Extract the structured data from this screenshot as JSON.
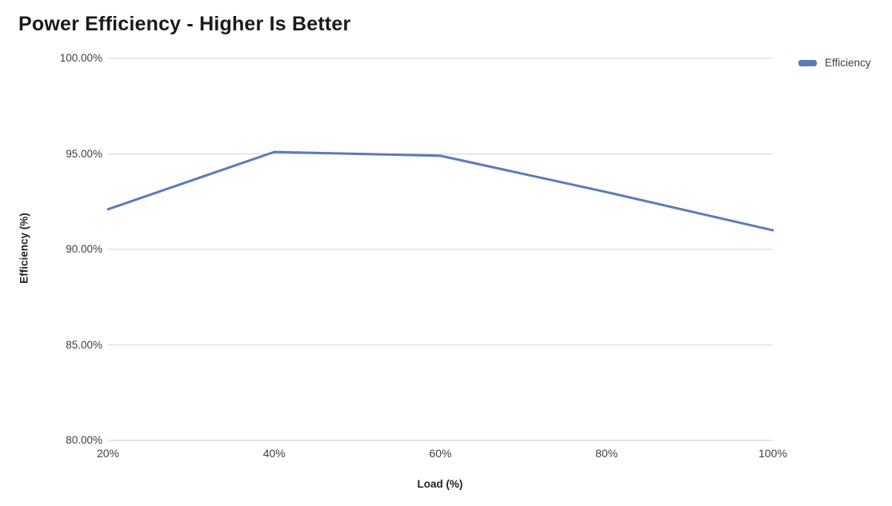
{
  "chart_data": {
    "type": "line",
    "title": "Power Efficiency - Higher Is Better",
    "xlabel": "Load (%)",
    "ylabel": "Efficiency (%)",
    "categories": [
      "20%",
      "40%",
      "60%",
      "80%",
      "100%"
    ],
    "x_values": [
      20,
      40,
      60,
      80,
      100
    ],
    "series": [
      {
        "name": "Efficiency",
        "values": [
          92.1,
          95.1,
          94.9,
          93.0,
          91.0
        ]
      }
    ],
    "ylim": [
      80,
      100
    ],
    "yticks": [
      {
        "label": "80.00%",
        "value": 80
      },
      {
        "label": "85.00%",
        "value": 85
      },
      {
        "label": "90.00%",
        "value": 90
      },
      {
        "label": "95.00%",
        "value": 95
      },
      {
        "label": "100.00%",
        "value": 100
      }
    ],
    "grid": "horizontal-only",
    "markers": "none",
    "legend_position": "top-right"
  },
  "colors": {
    "line": "#5b7cb8",
    "gridline": "#d9d9d9",
    "axis_text": "#404040",
    "axis_title_text": "#222222",
    "title_text": "#1a1a1a",
    "background": "#ffffff"
  }
}
